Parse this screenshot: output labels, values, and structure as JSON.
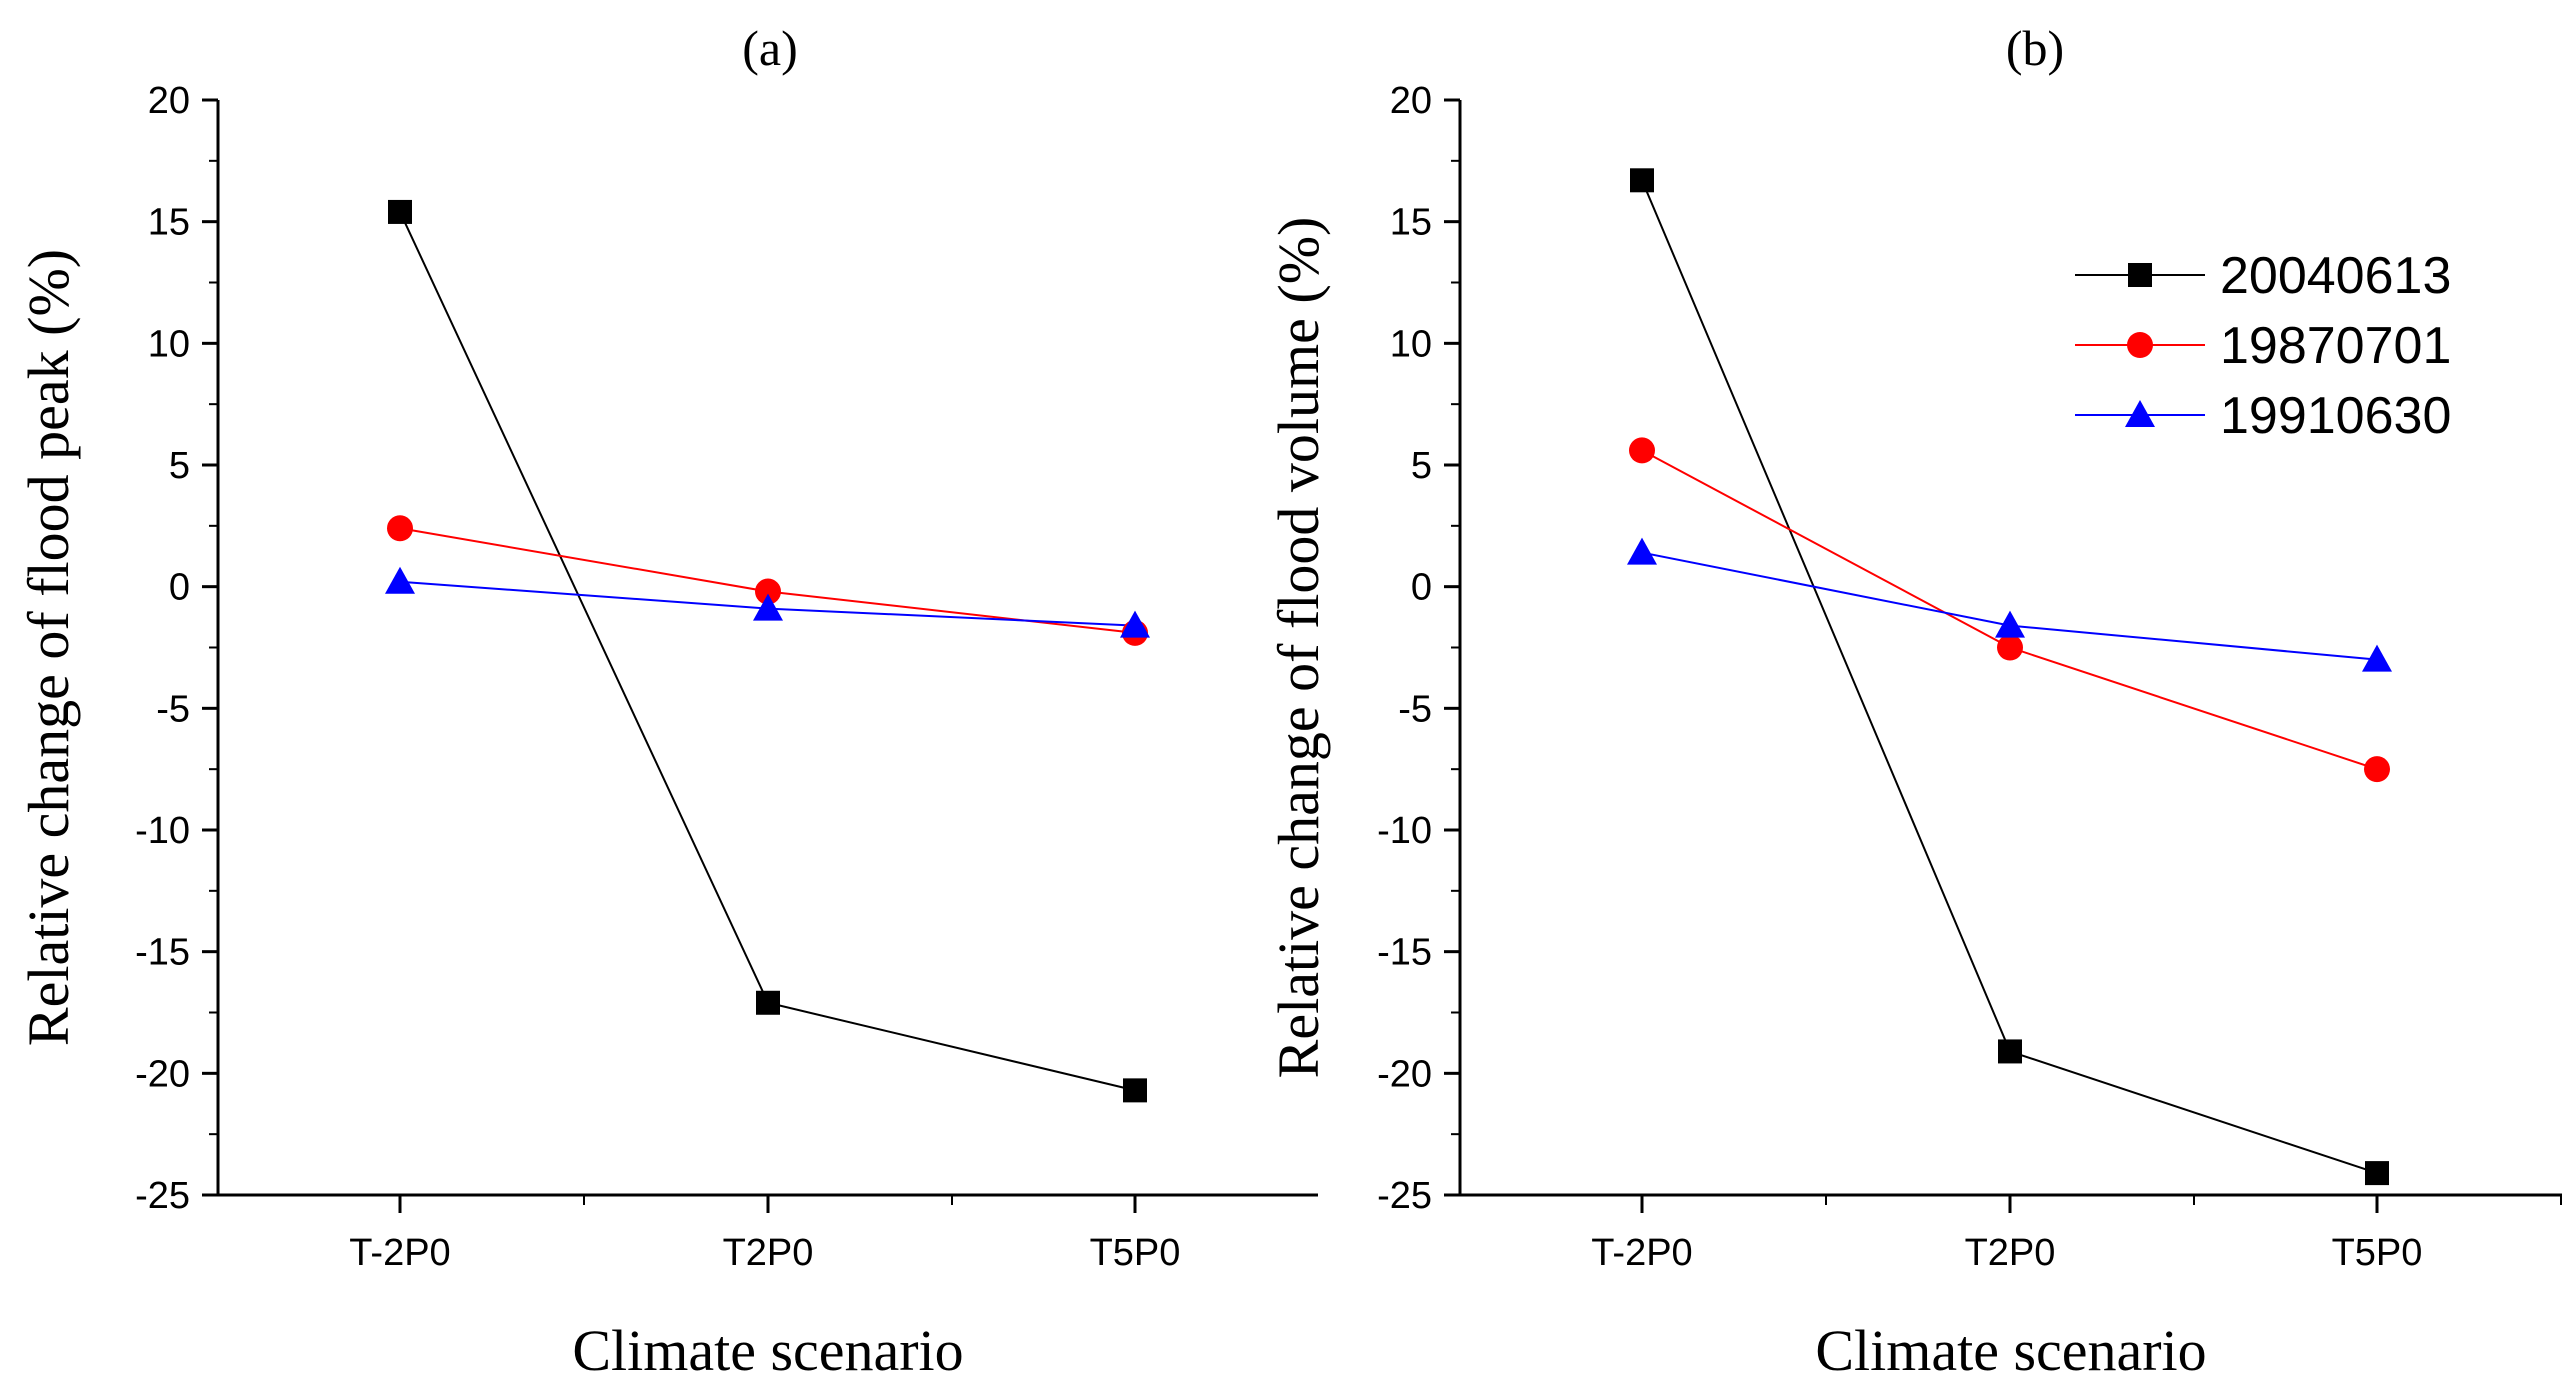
{
  "chart_data": [
    {
      "type": "line",
      "title": "(a)",
      "xlabel": "Climate scenario",
      "ylabel": "Relative change of flood peak (%)",
      "categories": [
        "T-2P0",
        "T2P0",
        "T5P0"
      ],
      "ylim": [
        -25,
        20
      ],
      "yticks": [
        -25,
        -20,
        -15,
        -10,
        -5,
        0,
        5,
        10,
        15,
        20
      ],
      "series": [
        {
          "name": "20040613",
          "values": [
            15.4,
            -17.1,
            -20.7
          ],
          "color": "#000000",
          "marker": "square"
        },
        {
          "name": "19870701",
          "values": [
            2.4,
            -0.2,
            -1.9
          ],
          "color": "#ff0000",
          "marker": "circle"
        },
        {
          "name": "19910630",
          "values": [
            0.2,
            -0.9,
            -1.6
          ],
          "color": "#0000ff",
          "marker": "triangle"
        }
      ]
    },
    {
      "type": "line",
      "title": "(b)",
      "xlabel": "Climate scenario",
      "ylabel": "Relative change of flood volume (%)",
      "categories": [
        "T-2P0",
        "T2P0",
        "T5P0"
      ],
      "ylim": [
        -25,
        20
      ],
      "yticks": [
        -25,
        -20,
        -15,
        -10,
        -5,
        0,
        5,
        10,
        15,
        20
      ],
      "legend": "top-right",
      "series": [
        {
          "name": "20040613",
          "values": [
            16.7,
            -19.1,
            -24.1
          ],
          "color": "#000000",
          "marker": "square"
        },
        {
          "name": "19870701",
          "values": [
            5.6,
            -2.5,
            -7.5
          ],
          "color": "#ff0000",
          "marker": "circle"
        },
        {
          "name": "19910630",
          "values": [
            1.4,
            -1.6,
            -3.0
          ],
          "color": "#0000ff",
          "marker": "triangle"
        }
      ]
    }
  ]
}
